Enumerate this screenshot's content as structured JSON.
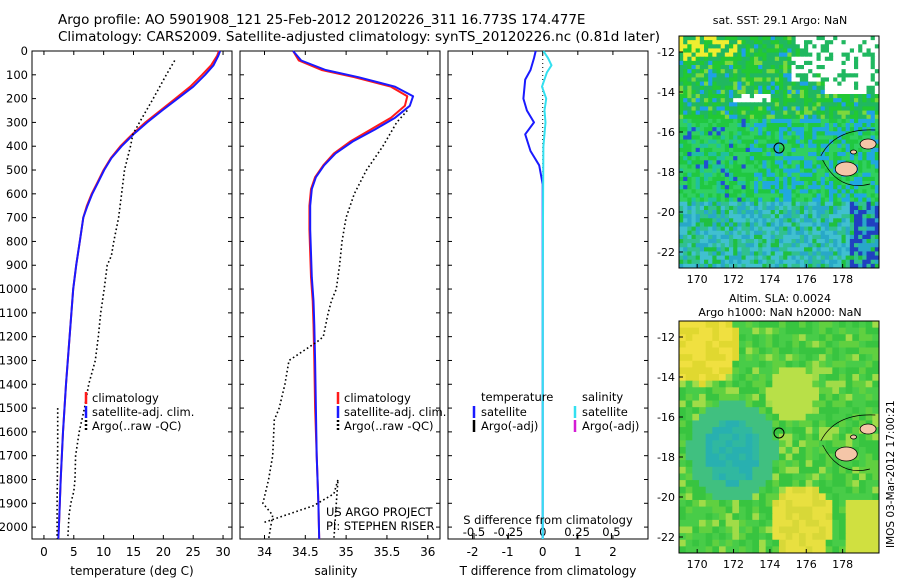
{
  "title_line1": "Argo profile: AO 5901908_121 25-Feb-2012 20120226_311 16.773S 174.477E",
  "title_line2": "Climatology: CARS2009. Satellite-adjusted climatology: synTS_20120226.nc (0.81d later)",
  "colors": {
    "climatology": "#ff1a1a",
    "satellite_adj": "#1a1aff",
    "argo": "#000000",
    "salinity_satellite": "#33e0f0",
    "salinity_argo_adj": "#d41cd4",
    "ocean_bg": "#22c822"
  },
  "watermark": "IMOS 03-Mar-2012 17:00:21",
  "chart_data": [
    {
      "id": "temperature",
      "type": "line",
      "xlabel": "temperature (deg C)",
      "ylabel": "",
      "xlim": [
        -2,
        31.5
      ],
      "ylim": [
        2050,
        0
      ],
      "xticks": [
        0,
        5,
        10,
        15,
        20,
        25,
        30
      ],
      "yticks": [
        0,
        100,
        200,
        300,
        400,
        500,
        600,
        700,
        800,
        900,
        1000,
        1100,
        1200,
        1300,
        1400,
        1500,
        1600,
        1700,
        1800,
        1900,
        2000
      ],
      "legend": [
        "climatology",
        "satellite-adj. clim.",
        "Argo(..raw -QC)"
      ],
      "series": [
        {
          "name": "climatology",
          "style": "solid",
          "color_key": "climatology",
          "points": [
            [
              29.3,
              0
            ],
            [
              29.0,
              20
            ],
            [
              28.0,
              60
            ],
            [
              26.5,
              100
            ],
            [
              24.5,
              150
            ],
            [
              22.0,
              200
            ],
            [
              19.5,
              250
            ],
            [
              17.0,
              300
            ],
            [
              14.8,
              350
            ],
            [
              12.8,
              400
            ],
            [
              11.2,
              450
            ],
            [
              10.0,
              500
            ],
            [
              9.0,
              550
            ],
            [
              8.0,
              600
            ],
            [
              7.2,
              650
            ],
            [
              6.6,
              700
            ],
            [
              6.0,
              800
            ],
            [
              5.4,
              900
            ],
            [
              4.9,
              1000
            ],
            [
              4.3,
              1200
            ],
            [
              3.7,
              1400
            ],
            [
              3.2,
              1600
            ],
            [
              2.8,
              1800
            ],
            [
              2.5,
              2000
            ],
            [
              2.4,
              2050
            ]
          ]
        },
        {
          "name": "satellite-adj. clim.",
          "style": "solid",
          "color_key": "satellite_adj",
          "points": [
            [
              29.5,
              0
            ],
            [
              29.2,
              20
            ],
            [
              28.4,
              60
            ],
            [
              27.0,
              100
            ],
            [
              25.0,
              150
            ],
            [
              22.4,
              200
            ],
            [
              19.8,
              250
            ],
            [
              17.3,
              300
            ],
            [
              15.0,
              350
            ],
            [
              13.0,
              400
            ],
            [
              11.3,
              450
            ],
            [
              10.1,
              500
            ],
            [
              9.1,
              550
            ],
            [
              8.1,
              600
            ],
            [
              7.3,
              650
            ],
            [
              6.6,
              700
            ],
            [
              6.0,
              800
            ],
            [
              5.4,
              900
            ],
            [
              4.9,
              1000
            ],
            [
              4.3,
              1200
            ],
            [
              3.7,
              1400
            ],
            [
              3.2,
              1600
            ],
            [
              2.8,
              1800
            ],
            [
              2.5,
              2000
            ],
            [
              2.4,
              2050
            ]
          ]
        },
        {
          "name": "Argo(..raw -QC)",
          "style": "dotted",
          "color_key": "argo",
          "points": [
            [
              21.9,
              40
            ],
            [
              20.5,
              100
            ],
            [
              18.3,
              200
            ],
            [
              16.0,
              300
            ],
            [
              14.9,
              350
            ],
            [
              14.5,
              400
            ],
            [
              13.5,
              500
            ],
            [
              13.0,
              600
            ],
            [
              12.5,
              700
            ],
            [
              11.7,
              800
            ],
            [
              11.3,
              860
            ],
            [
              10.6,
              900
            ],
            [
              10.1,
              1000
            ],
            [
              9.5,
              1100
            ],
            [
              9.1,
              1200
            ],
            [
              8.6,
              1300
            ],
            [
              7.5,
              1400
            ],
            [
              6.8,
              1500
            ],
            [
              5.9,
              1600
            ],
            [
              5.3,
              1700
            ],
            [
              5.2,
              1800
            ],
            [
              5.0,
              1850
            ],
            [
              4.5,
              1900
            ],
            [
              4.2,
              1950
            ],
            [
              4.0,
              2050
            ]
          ]
        },
        {
          "name": "Argo(..raw -QC)",
          "style": "dotted",
          "color_key": "argo",
          "points": [
            [
              2.3,
              1500
            ],
            [
              2.3,
              1650
            ],
            [
              2.2,
              1900
            ],
            [
              2.2,
              2050
            ]
          ]
        }
      ]
    },
    {
      "id": "salinity",
      "type": "line",
      "xlabel": "salinity",
      "ylabel": "",
      "xlim": [
        33.7,
        36.15
      ],
      "ylim": [
        2050,
        0
      ],
      "xticks": [
        34,
        34.5,
        35,
        35.5,
        36
      ],
      "xtick_labels": [
        "34",
        "34.5",
        "35",
        "35.5",
        "36"
      ],
      "legend": [
        "climatology",
        "satellite-adj. clim.",
        "Argo(..raw -QC)"
      ],
      "annotation": [
        "US ARGO PROJECT",
        "PI: STEPHEN RISER"
      ],
      "series": [
        {
          "name": "climatology",
          "style": "solid",
          "color_key": "climatology",
          "points": [
            [
              34.35,
              0
            ],
            [
              34.42,
              40
            ],
            [
              34.7,
              80
            ],
            [
              35.1,
              110
            ],
            [
              35.55,
              150
            ],
            [
              35.75,
              190
            ],
            [
              35.72,
              230
            ],
            [
              35.55,
              280
            ],
            [
              35.3,
              330
            ],
            [
              35.05,
              380
            ],
            [
              34.85,
              430
            ],
            [
              34.72,
              480
            ],
            [
              34.62,
              530
            ],
            [
              34.57,
              580
            ],
            [
              34.55,
              650
            ],
            [
              34.55,
              750
            ],
            [
              34.56,
              850
            ],
            [
              34.57,
              950
            ],
            [
              34.59,
              1050
            ],
            [
              34.6,
              1150
            ],
            [
              34.61,
              1300
            ],
            [
              34.62,
              1500
            ],
            [
              34.64,
              1700
            ],
            [
              34.66,
              1900
            ],
            [
              34.67,
              2050
            ]
          ]
        },
        {
          "name": "satellite-adj. clim.",
          "style": "solid",
          "color_key": "satellite_adj",
          "points": [
            [
              34.35,
              0
            ],
            [
              34.45,
              40
            ],
            [
              34.75,
              80
            ],
            [
              35.15,
              110
            ],
            [
              35.6,
              150
            ],
            [
              35.82,
              190
            ],
            [
              35.78,
              230
            ],
            [
              35.6,
              280
            ],
            [
              35.35,
              330
            ],
            [
              35.08,
              380
            ],
            [
              34.87,
              430
            ],
            [
              34.73,
              480
            ],
            [
              34.63,
              530
            ],
            [
              34.58,
              580
            ],
            [
              34.56,
              650
            ],
            [
              34.56,
              750
            ],
            [
              34.57,
              850
            ],
            [
              34.58,
              950
            ],
            [
              34.6,
              1050
            ],
            [
              34.61,
              1150
            ],
            [
              34.62,
              1300
            ],
            [
              34.63,
              1500
            ],
            [
              34.64,
              1700
            ],
            [
              34.66,
              1900
            ],
            [
              34.67,
              2050
            ]
          ]
        },
        {
          "name": "Argo(..raw -QC)",
          "style": "dotted",
          "color_key": "argo",
          "points": [
            [
              35.75,
              250
            ],
            [
              35.62,
              300
            ],
            [
              35.45,
              400
            ],
            [
              35.25,
              500
            ],
            [
              35.1,
              600
            ],
            [
              35.0,
              700
            ],
            [
              34.95,
              800
            ],
            [
              34.92,
              900
            ],
            [
              34.88,
              1000
            ],
            [
              34.82,
              1050
            ],
            [
              34.78,
              1100
            ],
            [
              34.72,
              1200
            ],
            [
              34.65,
              1220
            ],
            [
              34.3,
              1300
            ],
            [
              34.25,
              1400
            ],
            [
              34.18,
              1500
            ],
            [
              34.12,
              1550
            ],
            [
              34.1,
              1700
            ],
            [
              34.05,
              1800
            ],
            [
              33.98,
              1900
            ],
            [
              34.1,
              1950
            ],
            [
              34.05,
              2050
            ]
          ]
        },
        {
          "name": "Argo(..raw -QC)",
          "style": "dotted",
          "color_key": "argo",
          "points": [
            [
              34.0,
              1980
            ],
            [
              34.6,
              1910
            ],
            [
              34.85,
              1860
            ],
            [
              34.9,
              1800
            ],
            [
              34.88,
              1900
            ],
            [
              34.85,
              2050
            ]
          ]
        }
      ]
    },
    {
      "id": "difference",
      "type": "line",
      "xlabel": "T difference from climatology",
      "xlabel_top": "S difference from climatology",
      "xlim": [
        -2.7,
        3.0
      ],
      "ylim": [
        2050,
        0
      ],
      "xticks": [
        -2,
        -1,
        0,
        1,
        2
      ],
      "top_ticks": [
        -0.5,
        -0.25,
        0,
        0.25,
        0.5
      ],
      "top_tick_labels": [
        "-0.5",
        "-0.25",
        "0",
        "0.25",
        "0.5"
      ],
      "legend_temperature_title": "temperature",
      "legend_salinity_title": "salinity",
      "legend_temperature": [
        "satellite",
        "Argo(-adj)"
      ],
      "legend_salinity": [
        "satellite",
        "Argo(-adj)"
      ],
      "series": [
        {
          "name": "satellite",
          "style": "solid",
          "color_key": "satellite_adj",
          "points": [
            [
              -0.2,
              0
            ],
            [
              -0.25,
              30
            ],
            [
              -0.35,
              80
            ],
            [
              -0.5,
              120
            ],
            [
              -0.55,
              200
            ],
            [
              -0.45,
              250
            ],
            [
              -0.25,
              300
            ],
            [
              -0.5,
              350
            ],
            [
              -0.35,
              420
            ],
            [
              -0.1,
              480
            ],
            [
              0.0,
              560
            ],
            [
              0.0,
              1250
            ],
            [
              0.0,
              2050
            ]
          ]
        },
        {
          "name": "satellite",
          "style": "solid",
          "color_key": "salinity_satellite",
          "points": [
            [
              0.02,
              0
            ],
            [
              0.15,
              30
            ],
            [
              0.25,
              60
            ],
            [
              0.12,
              90
            ],
            [
              -0.02,
              150
            ],
            [
              0.1,
              200
            ],
            [
              0.05,
              250
            ],
            [
              0.08,
              300
            ],
            [
              0.02,
              400
            ],
            [
              0.01,
              600
            ],
            [
              0.0,
              1000
            ],
            [
              0.0,
              2050
            ]
          ]
        }
      ]
    },
    {
      "id": "sst_map",
      "type": "heatmap",
      "title": "sat. SST: 29.1  Argo: NaN",
      "xticks": [
        170,
        172,
        174,
        176,
        178
      ],
      "yticks": [
        -12,
        -14,
        -16,
        -18,
        -20,
        -22
      ],
      "xlim": [
        169,
        180
      ],
      "ylim": [
        -22.8,
        -11.2
      ],
      "argo_position": [
        174.5,
        -16.8
      ]
    },
    {
      "id": "sla_map",
      "type": "heatmap",
      "title_line1": "Altim. SLA: 0.0024",
      "title_line2": "Argo h1000: NaN h2000: NaN",
      "xticks": [
        170,
        172,
        174,
        176,
        178
      ],
      "yticks": [
        -12,
        -14,
        -16,
        -18,
        -20,
        -22
      ],
      "xlim": [
        169,
        180
      ],
      "ylim": [
        -22.8,
        -11.2
      ],
      "argo_position": [
        174.5,
        -16.8
      ]
    }
  ]
}
